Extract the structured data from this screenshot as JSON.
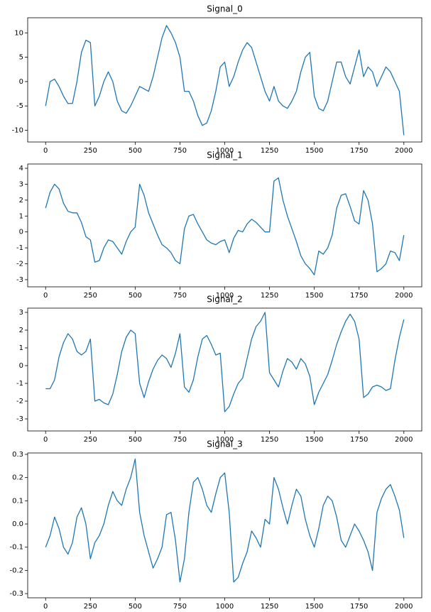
{
  "chart_data": [
    {
      "type": "line",
      "title": "Signal_0",
      "color": "#1f77b4",
      "x": [
        0,
        25,
        50,
        75,
        100,
        125,
        150,
        175,
        200,
        225,
        250,
        275,
        300,
        325,
        350,
        375,
        400,
        425,
        450,
        475,
        500,
        525,
        550,
        575,
        600,
        625,
        650,
        675,
        700,
        725,
        750,
        775,
        800,
        825,
        850,
        875,
        900,
        925,
        950,
        975,
        1000,
        1025,
        1050,
        1075,
        1100,
        1125,
        1150,
        1175,
        1200,
        1225,
        1250,
        1275,
        1300,
        1325,
        1350,
        1375,
        1400,
        1425,
        1450,
        1475,
        1500,
        1525,
        1550,
        1575,
        1600,
        1625,
        1650,
        1675,
        1700,
        1725,
        1750,
        1775,
        1800,
        1825,
        1850,
        1875,
        1900,
        1925,
        1950,
        1975,
        2000
      ],
      "values": [
        -5,
        0,
        0.5,
        -1,
        -3,
        -4.5,
        -4.5,
        0,
        6,
        8.5,
        8,
        -5,
        -3,
        0,
        2,
        0,
        -4,
        -6,
        -6.5,
        -5,
        -3,
        -1,
        -1.5,
        -2,
        1,
        5,
        9,
        11.5,
        10,
        8,
        5,
        -2,
        -2,
        -4,
        -7,
        -9,
        -8.5,
        -6,
        -2,
        3,
        4,
        -1,
        1,
        4,
        6.5,
        8,
        7,
        4,
        1,
        -2,
        -4,
        -1,
        -4,
        -5,
        -5.5,
        -4,
        -2,
        2,
        5,
        6,
        -3,
        -5.5,
        -6,
        -4,
        0,
        4,
        4,
        1,
        -0.5,
        3,
        6.5,
        1,
        3,
        2,
        -1,
        1,
        3,
        2,
        0,
        -2,
        -11
      ],
      "xlim": [
        -100,
        2100
      ],
      "xticks": [
        0,
        250,
        500,
        750,
        1000,
        1250,
        1500,
        1750,
        2000
      ],
      "ylim": [
        -12.4,
        13.1
      ],
      "yticks": [
        -10,
        -5,
        0,
        5,
        10
      ]
    },
    {
      "type": "line",
      "title": "Signal_1",
      "color": "#1f77b4",
      "x": [
        0,
        25,
        50,
        75,
        100,
        125,
        150,
        175,
        200,
        225,
        250,
        275,
        300,
        325,
        350,
        375,
        400,
        425,
        450,
        475,
        500,
        525,
        550,
        575,
        600,
        625,
        650,
        675,
        700,
        725,
        750,
        775,
        800,
        825,
        850,
        875,
        900,
        925,
        950,
        975,
        1000,
        1025,
        1050,
        1075,
        1100,
        1125,
        1150,
        1175,
        1200,
        1225,
        1250,
        1275,
        1300,
        1325,
        1350,
        1375,
        1400,
        1425,
        1450,
        1475,
        1500,
        1525,
        1550,
        1575,
        1600,
        1625,
        1650,
        1675,
        1700,
        1725,
        1750,
        1775,
        1800,
        1825,
        1850,
        1875,
        1900,
        1925,
        1950,
        1975,
        2000
      ],
      "values": [
        1.5,
        2.5,
        3,
        2.7,
        1.8,
        1.3,
        1.2,
        1.2,
        0.6,
        -0.3,
        -0.5,
        -1.9,
        -1.8,
        -1.0,
        -0.5,
        -0.6,
        -1.0,
        -1.4,
        -0.6,
        0,
        0.3,
        3,
        2.3,
        1.2,
        0.5,
        -0.2,
        -0.8,
        -1.0,
        -1.3,
        -1.8,
        -2,
        0.2,
        1.0,
        1.1,
        0.5,
        0,
        -0.5,
        -0.7,
        -0.8,
        -0.6,
        -0.5,
        -1.3,
        -0.4,
        0.1,
        0,
        0.5,
        0.8,
        0.6,
        0.3,
        0,
        0,
        3.2,
        3.4,
        2,
        1,
        0.2,
        -0.6,
        -1.5,
        -2,
        -2.3,
        -2.7,
        -1.2,
        -1.4,
        -1,
        -0.2,
        1.5,
        2.3,
        2.4,
        1.6,
        0.7,
        0.5,
        2.6,
        2,
        0.5,
        -2.5,
        -2.3,
        -2,
        -1.2,
        -1.3,
        -1.8,
        -0.2
      ],
      "xlim": [
        -100,
        2100
      ],
      "xticks": [
        0,
        250,
        500,
        750,
        1000,
        1250,
        1500,
        1750,
        2000
      ],
      "ylim": [
        -3.45,
        4.27
      ],
      "yticks": [
        -3,
        -2,
        -1,
        0,
        1,
        2,
        3,
        4
      ]
    },
    {
      "type": "line",
      "title": "Signal_2",
      "color": "#1f77b4",
      "x": [
        0,
        25,
        50,
        75,
        100,
        125,
        150,
        175,
        200,
        225,
        250,
        275,
        300,
        325,
        350,
        375,
        400,
        425,
        450,
        475,
        500,
        525,
        550,
        575,
        600,
        625,
        650,
        675,
        700,
        725,
        750,
        775,
        800,
        825,
        850,
        875,
        900,
        925,
        950,
        975,
        1000,
        1025,
        1050,
        1075,
        1100,
        1125,
        1150,
        1175,
        1200,
        1225,
        1250,
        1275,
        1300,
        1325,
        1350,
        1375,
        1400,
        1425,
        1450,
        1475,
        1500,
        1525,
        1550,
        1575,
        1600,
        1625,
        1650,
        1675,
        1700,
        1725,
        1750,
        1775,
        1800,
        1825,
        1850,
        1875,
        1900,
        1925,
        1950,
        1975,
        2000
      ],
      "values": [
        -1.3,
        -1.3,
        -0.8,
        0.5,
        1.3,
        1.8,
        1.5,
        0.8,
        0.6,
        0.8,
        1.5,
        -2,
        -1.9,
        -2.1,
        -2.2,
        -1.6,
        -0.5,
        0.8,
        1.6,
        2.0,
        1.8,
        -1.0,
        -1.8,
        -0.9,
        -0.2,
        0.3,
        0.6,
        0.4,
        -0.1,
        0.7,
        1.8,
        -1.2,
        -1.5,
        -0.8,
        0.5,
        1.5,
        1.7,
        1.2,
        0.6,
        0.7,
        -2.6,
        -2.3,
        -1.6,
        -1,
        -0.7,
        0.4,
        1.5,
        2.2,
        2.5,
        3,
        -0.4,
        -0.8,
        -1.2,
        -0.3,
        0.4,
        0.2,
        -0.2,
        0.4,
        0.1,
        -0.6,
        -2.2,
        -1.5,
        -1,
        -0.5,
        0.3,
        1.2,
        1.9,
        2.5,
        2.9,
        2.5,
        1.5,
        -1.8,
        -1.6,
        -1.2,
        -1.1,
        -1.2,
        -1.4,
        -1.3,
        0.3,
        1.6,
        2.6
      ],
      "xlim": [
        -100,
        2100
      ],
      "xticks": [
        0,
        250,
        500,
        750,
        1000,
        1250,
        1500,
        1750,
        2000
      ],
      "ylim": [
        -3.68,
        3.24
      ],
      "yticks": [
        -3,
        -2,
        -1,
        0,
        1,
        2,
        3
      ]
    },
    {
      "type": "line",
      "title": "Signal_3",
      "color": "#1f77b4",
      "x": [
        0,
        25,
        50,
        75,
        100,
        125,
        150,
        175,
        200,
        225,
        250,
        275,
        300,
        325,
        350,
        375,
        400,
        425,
        450,
        475,
        500,
        525,
        550,
        575,
        600,
        625,
        650,
        675,
        700,
        725,
        750,
        775,
        800,
        825,
        850,
        875,
        900,
        925,
        950,
        975,
        1000,
        1025,
        1050,
        1075,
        1100,
        1125,
        1150,
        1175,
        1200,
        1225,
        1250,
        1275,
        1300,
        1325,
        1350,
        1375,
        1400,
        1425,
        1450,
        1475,
        1500,
        1525,
        1550,
        1575,
        1600,
        1625,
        1650,
        1675,
        1700,
        1725,
        1750,
        1775,
        1800,
        1825,
        1850,
        1875,
        1900,
        1925,
        1950,
        1975,
        2000
      ],
      "values": [
        -0.1,
        -0.05,
        0.03,
        -0.02,
        -0.1,
        -0.13,
        -0.08,
        0.03,
        0.07,
        0.0,
        -0.15,
        -0.08,
        -0.05,
        0,
        0.08,
        0.14,
        0.1,
        0.08,
        0.15,
        0.2,
        0.28,
        0.05,
        -0.05,
        -0.12,
        -0.19,
        -0.15,
        -0.1,
        0.04,
        0.05,
        -0.07,
        -0.25,
        -0.15,
        0.05,
        0.18,
        0.2,
        0.15,
        0.08,
        0.05,
        0.13,
        0.2,
        0.22,
        0.05,
        -0.25,
        -0.23,
        -0.17,
        -0.12,
        -0.03,
        -0.06,
        -0.1,
        0.02,
        0.0,
        0.2,
        0.15,
        0.07,
        0.0,
        0.08,
        0.15,
        0.12,
        0.02,
        -0.05,
        -0.1,
        -0.02,
        0.08,
        0.12,
        0.1,
        0.03,
        -0.07,
        -0.1,
        -0.05,
        0.0,
        -0.03,
        -0.07,
        -0.12,
        -0.2,
        0.05,
        0.11,
        0.15,
        0.17,
        0.12,
        0.06,
        -0.06
      ],
      "xlim": [
        -100,
        2100
      ],
      "xticks": [
        0,
        250,
        500,
        750,
        1000,
        1250,
        1500,
        1750,
        2000
      ],
      "ylim": [
        -0.318,
        0.306
      ],
      "yticks": [
        -0.3,
        -0.2,
        -0.1,
        {
          "value": 0,
          "label": "0.0"
        },
        0.1,
        0.2,
        0.3
      ]
    }
  ]
}
